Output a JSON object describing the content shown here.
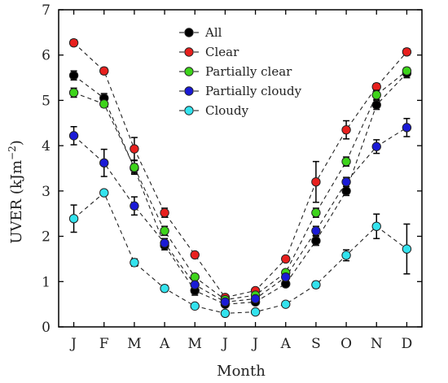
{
  "chart_data": {
    "type": "line",
    "xlabel": "Month",
    "ylabel": "UVER (kJm",
    "ylabel_sup": "−2",
    "ylabel_close": ")",
    "ylim": [
      0,
      7
    ],
    "yticks": [
      0,
      1,
      2,
      3,
      4,
      5,
      6,
      7
    ],
    "categories": [
      "J",
      "F",
      "M",
      "A",
      "M",
      "J",
      "J",
      "A",
      "S",
      "O",
      "N",
      "D"
    ],
    "legend_position": "top-center",
    "line_style": "dashed",
    "series": [
      {
        "name": "All",
        "color": "#000000",
        "values": [
          5.55,
          5.05,
          3.5,
          1.8,
          0.8,
          0.5,
          0.55,
          0.95,
          1.9,
          3.0,
          4.9,
          5.6
        ],
        "errors": [
          0.1,
          0.1,
          0.1,
          0.1,
          0.1,
          0.05,
          0.05,
          0.05,
          0.1,
          0.1,
          0.1,
          0.1
        ]
      },
      {
        "name": "Clear",
        "color": "#e8201e",
        "values": [
          6.27,
          5.65,
          3.93,
          2.52,
          1.59,
          0.65,
          0.8,
          1.5,
          3.2,
          4.35,
          5.3,
          6.07
        ],
        "errors": [
          0.07,
          0.07,
          0.25,
          0.1,
          0.05,
          0.05,
          0.05,
          0.05,
          0.45,
          0.2,
          0.07,
          0.07
        ]
      },
      {
        "name": "Partially clear",
        "color": "#3dd41b",
        "values": [
          5.17,
          4.92,
          3.52,
          2.12,
          1.1,
          0.6,
          0.7,
          1.2,
          2.52,
          3.65,
          5.12,
          5.65
        ],
        "errors": [
          0.1,
          0.07,
          0.15,
          0.1,
          0.05,
          0.05,
          0.05,
          0.05,
          0.1,
          0.1,
          0.1,
          0.07
        ]
      },
      {
        "name": "Partially cloudy",
        "color": "#1a1ad6",
        "values": [
          4.22,
          3.62,
          2.67,
          1.85,
          0.93,
          0.55,
          0.62,
          1.1,
          2.12,
          3.2,
          3.98,
          4.4
        ],
        "errors": [
          0.2,
          0.3,
          0.2,
          0.1,
          0.07,
          0.05,
          0.05,
          0.07,
          0.1,
          0.1,
          0.15,
          0.2
        ]
      },
      {
        "name": "Cloudy",
        "color": "#33e3ee",
        "values": [
          2.39,
          2.96,
          1.42,
          0.85,
          0.46,
          0.3,
          0.33,
          0.5,
          0.93,
          1.58,
          2.22,
          1.72
        ],
        "errors": [
          0.3,
          0.03,
          0.08,
          0.07,
          0.05,
          0.05,
          0.05,
          0.05,
          0.07,
          0.12,
          0.27,
          0.55
        ]
      }
    ]
  }
}
